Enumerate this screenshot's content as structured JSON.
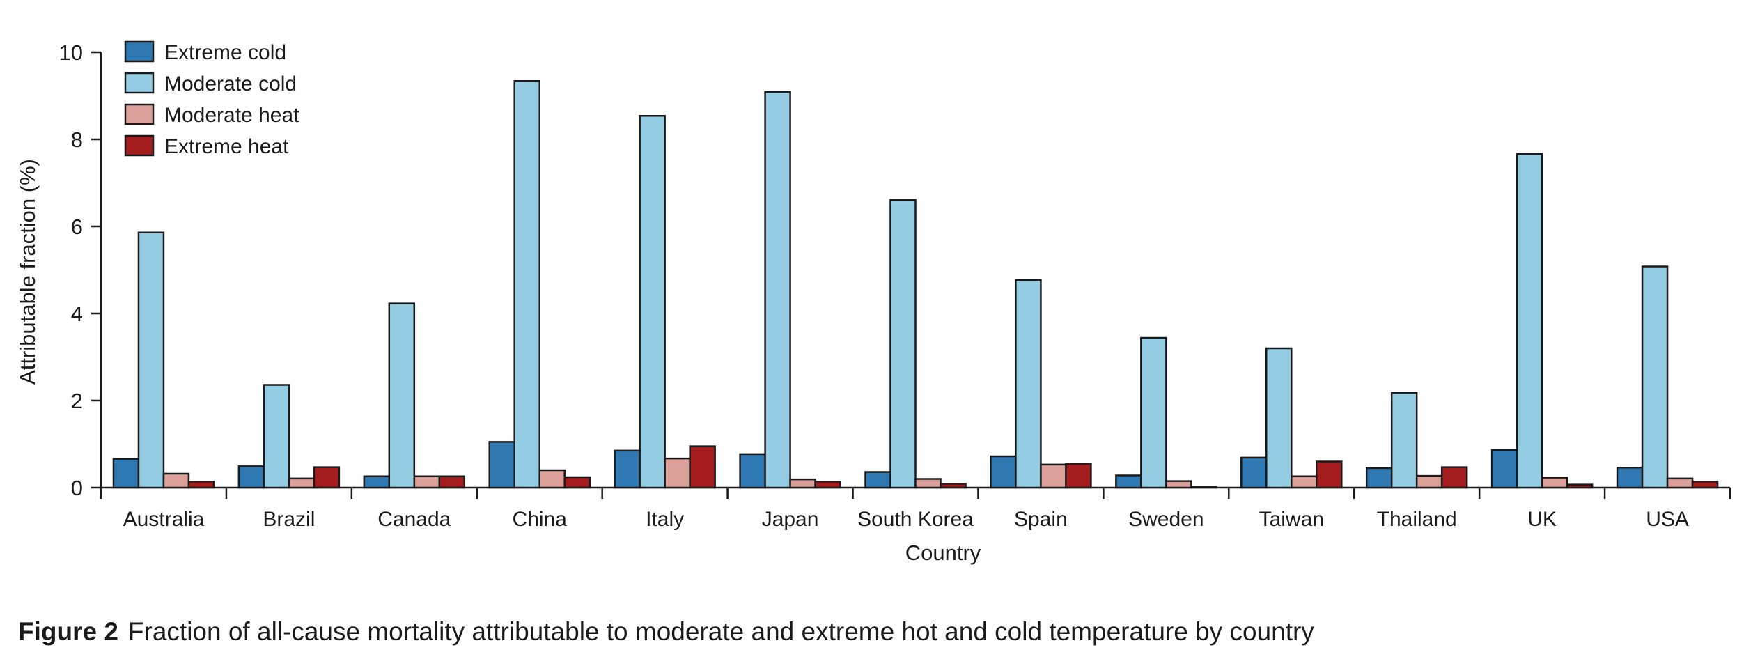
{
  "chart_data": {
    "type": "bar",
    "xlabel": "Country",
    "ylabel": "Attributable fraction (%)",
    "ylim": [
      0,
      10
    ],
    "yticks": [
      0,
      2,
      4,
      6,
      8,
      10
    ],
    "ytick_labels": [
      "0",
      "2",
      "4",
      "6",
      "8",
      "10"
    ],
    "grid": false,
    "legend_position": "top-left",
    "categories": [
      "Australia",
      "Brazil",
      "Canada",
      "China",
      "Italy",
      "Japan",
      "South Korea",
      "Spain",
      "Sweden",
      "Taiwan",
      "Thailand",
      "UK",
      "USA"
    ],
    "series": [
      {
        "name": "Extreme cold",
        "color": "#2f78b2",
        "values": [
          0.66,
          0.49,
          0.26,
          1.05,
          0.85,
          0.77,
          0.36,
          0.72,
          0.28,
          0.69,
          0.45,
          0.86,
          0.46
        ]
      },
      {
        "name": "Moderate cold",
        "color": "#93cce3",
        "values": [
          5.86,
          2.36,
          4.23,
          9.34,
          8.54,
          9.09,
          6.61,
          4.77,
          3.44,
          3.2,
          2.18,
          7.66,
          5.08
        ]
      },
      {
        "name": "Moderate heat",
        "color": "#dba09a",
        "values": [
          0.32,
          0.21,
          0.26,
          0.4,
          0.67,
          0.19,
          0.2,
          0.53,
          0.15,
          0.26,
          0.27,
          0.23,
          0.21
        ]
      },
      {
        "name": "Extreme heat",
        "color": "#a41c1e",
        "values": [
          0.14,
          0.47,
          0.26,
          0.24,
          0.95,
          0.14,
          0.09,
          0.55,
          0.02,
          0.6,
          0.47,
          0.07,
          0.14
        ]
      }
    ]
  },
  "caption": {
    "figure_label": "Figure 2",
    "text": "Fraction of all-cause mortality attributable to moderate and extreme hot and cold temperature by country"
  }
}
